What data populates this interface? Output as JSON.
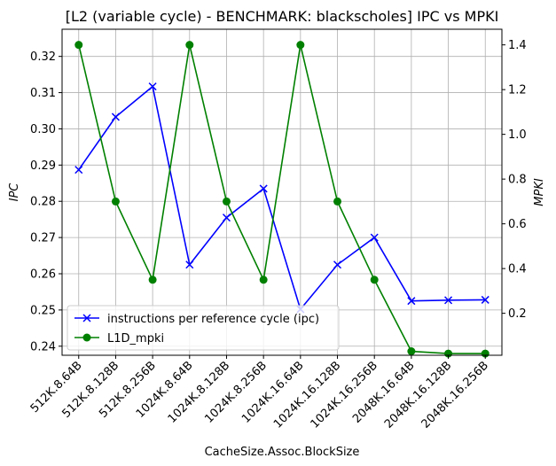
{
  "chart_data": {
    "type": "line",
    "title": "[L2 (variable cycle) - BENCHMARK: blackscholes]  IPC vs MPKI",
    "xlabel": "CacheSize.Assoc.BlockSize",
    "ylabel_left": "IPC",
    "ylabel_right": "MPKI",
    "categories": [
      "512K.8.64B",
      "512K.8.128B",
      "512K.8.256B",
      "1024K.8.64B",
      "1024K.8.128B",
      "1024K.8.256B",
      "1024K.16.64B",
      "1024K.16.128B",
      "1024K.16.256B",
      "2048K.16.64B",
      "2048K.16.128B",
      "2048K.16.256B"
    ],
    "left_axis": {
      "ylim": [
        0.2375,
        0.3275
      ],
      "ticks": [
        0.24,
        0.25,
        0.26,
        0.27,
        0.28,
        0.29,
        0.3,
        0.31,
        0.32
      ],
      "tick_labels": [
        "0.24",
        "0.25",
        "0.26",
        "0.27",
        "0.28",
        "0.29",
        "0.30",
        "0.31",
        "0.32"
      ]
    },
    "right_axis": {
      "ylim": [
        0.0124,
        1.4699
      ],
      "ticks": [
        0.2,
        0.4,
        0.6,
        0.8,
        1.0,
        1.2,
        1.4
      ],
      "tick_labels": [
        "0.2",
        "0.4",
        "0.6",
        "0.8",
        "1.0",
        "1.2",
        "1.4"
      ]
    },
    "series": [
      {
        "name": "instructions per reference cycle (ipc)",
        "axis": "left",
        "color": "#0000ff",
        "marker": "x",
        "values": [
          0.2887,
          0.3033,
          0.3117,
          0.2625,
          0.2755,
          0.2835,
          0.2502,
          0.2625,
          0.27,
          0.2525,
          0.2527,
          0.2528
        ]
      },
      {
        "name": "L1D_mpki",
        "axis": "right",
        "color": "#008000",
        "marker": "o",
        "values": [
          1.4,
          0.7,
          0.35,
          1.4,
          0.7,
          0.35,
          1.4,
          0.7,
          0.35,
          0.03,
          0.02,
          0.02
        ]
      }
    ],
    "grid": true,
    "legend_position": "lower-left"
  }
}
